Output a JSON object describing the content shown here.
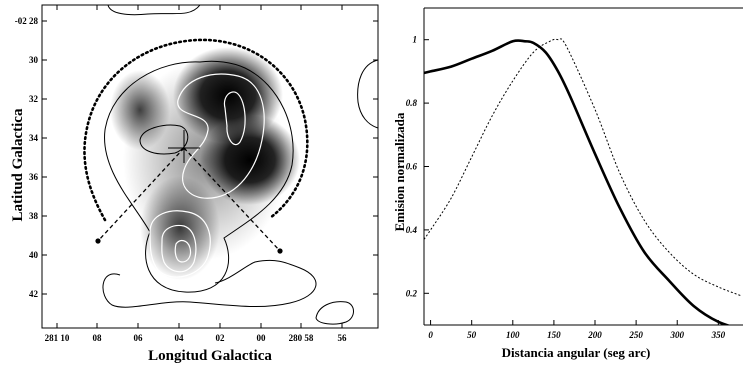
{
  "chart_data": [
    {
      "type": "contour",
      "xlabel": "Longitud Galactica",
      "ylabel": "Latitud Galactica",
      "x_ticks": [
        "281 10",
        "08",
        "06",
        "04",
        "02",
        "00",
        "280 58",
        "56"
      ],
      "y_ticks": [
        "-02 28",
        "30",
        "32",
        "34",
        "36",
        "38",
        "40",
        "42"
      ],
      "colors": {
        "frame": "#000000",
        "contour_dark": "#000000",
        "contour_light": "#ffffff",
        "arc": "#000000"
      }
    },
    {
      "type": "line",
      "xlabel": "Distancia angular (seg arc)",
      "ylabel": "Emision normalizada",
      "xlim": [
        -8,
        380
      ],
      "ylim": [
        0.1,
        1.1
      ],
      "x_ticks": [
        0,
        50,
        100,
        150,
        200,
        250,
        300,
        350
      ],
      "y_ticks": [
        0.2,
        0.4,
        0.6,
        0.8,
        1
      ],
      "series": [
        {
          "style": "solid",
          "x": [
            -8,
            0,
            25,
            50,
            75,
            100,
            115,
            125,
            140,
            155,
            170,
            200,
            230,
            260,
            290,
            320,
            350,
            380
          ],
          "y": [
            0.895,
            0.9,
            0.915,
            0.94,
            0.965,
            0.995,
            0.995,
            0.99,
            0.96,
            0.9,
            0.82,
            0.64,
            0.47,
            0.33,
            0.24,
            0.16,
            0.11,
            0.085
          ]
        },
        {
          "style": "dotted",
          "x": [
            -8,
            0,
            25,
            50,
            75,
            100,
            125,
            145,
            155,
            165,
            200,
            230,
            260,
            290,
            320,
            350,
            380
          ],
          "y": [
            0.37,
            0.4,
            0.5,
            0.63,
            0.76,
            0.87,
            0.96,
            0.995,
            1.0,
            0.98,
            0.78,
            0.58,
            0.43,
            0.33,
            0.26,
            0.22,
            0.19
          ]
        }
      ]
    }
  ]
}
